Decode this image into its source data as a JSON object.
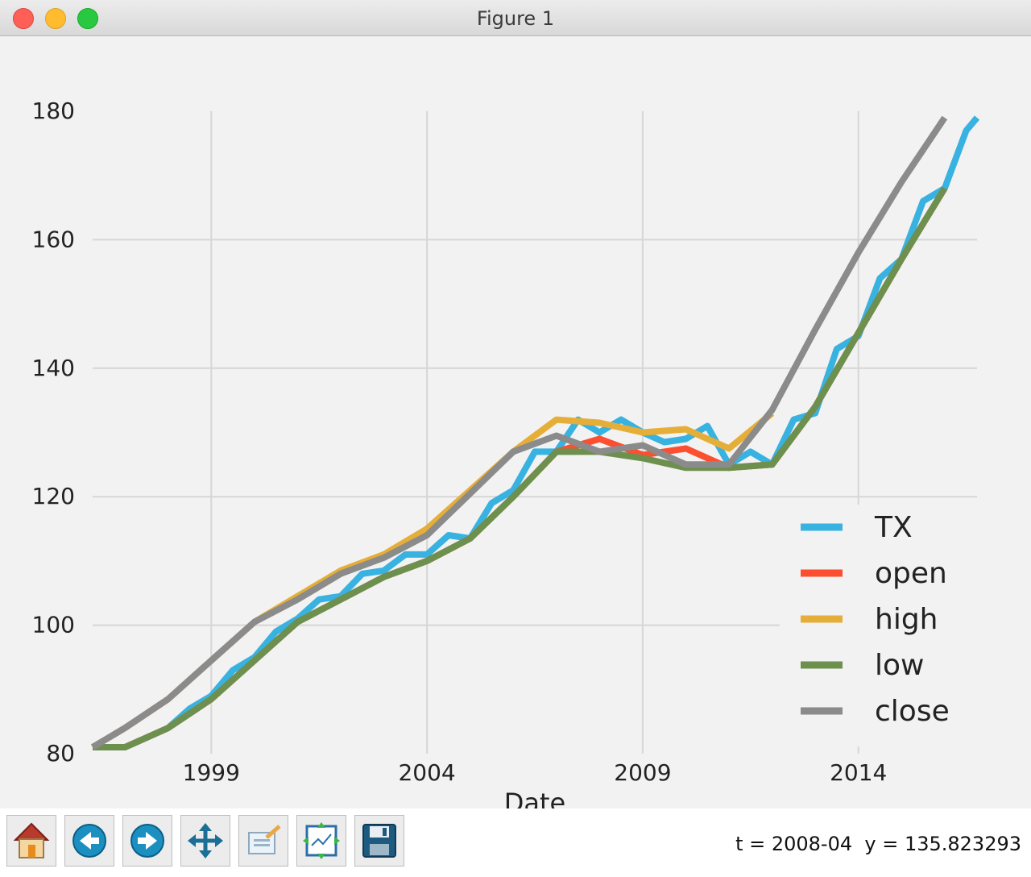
{
  "window": {
    "title": "Figure 1"
  },
  "toolbar": {
    "buttons": [
      {
        "name": "home-button",
        "icon": "home-icon"
      },
      {
        "name": "back-button",
        "icon": "back-arrow-icon"
      },
      {
        "name": "forward-button",
        "icon": "forward-arrow-icon"
      },
      {
        "name": "pan-button",
        "icon": "pan-move-icon"
      },
      {
        "name": "zoom-button",
        "icon": "zoom-rect-icon"
      },
      {
        "name": "subplots-button",
        "icon": "subplots-config-icon"
      },
      {
        "name": "save-button",
        "icon": "save-disk-icon"
      }
    ],
    "coords_text": "t = 2008-04  y = 135.823293"
  },
  "chart_data": {
    "type": "line",
    "title": "",
    "xlabel": "Date",
    "ylabel": "",
    "xlim": [
      1996.25,
      2016.75
    ],
    "ylim": [
      80,
      180
    ],
    "xticks": [
      1999,
      2004,
      2009,
      2014
    ],
    "xtick_labels": [
      "1999",
      "2004",
      "2009",
      "2014"
    ],
    "yticks": [
      80,
      100,
      120,
      140,
      160,
      180
    ],
    "ytick_labels": [
      "80",
      "100",
      "120",
      "140",
      "160",
      "180"
    ],
    "grid": true,
    "legend_position": "lower right",
    "series": [
      {
        "name": "TX",
        "color": "#38b2e0",
        "x": [
          1996.25,
          1997.0,
          1997.5,
          1998.0,
          1998.5,
          1999.0,
          1999.5,
          2000.0,
          2000.5,
          2001.0,
          2001.5,
          2002.0,
          2002.5,
          2003.0,
          2003.5,
          2004.0,
          2004.5,
          2005.0,
          2005.5,
          2006.0,
          2006.5,
          2007.0,
          2007.5,
          2008.0,
          2008.5,
          2009.0,
          2009.5,
          2010.0,
          2010.5,
          2011.0,
          2011.5,
          2012.0,
          2012.5,
          2013.0,
          2013.5,
          2014.0,
          2014.5,
          2015.0,
          2015.5,
          2016.0,
          2016.5,
          2016.75
        ],
        "y": [
          81,
          81,
          82.5,
          84,
          87,
          89,
          93,
          95,
          99,
          101,
          104,
          104.5,
          108,
          108.5,
          111,
          111,
          114,
          113.5,
          119,
          121,
          127,
          127,
          132,
          130,
          132,
          130,
          128.5,
          129,
          131,
          125,
          127,
          125,
          132,
          133,
          143,
          145,
          154,
          157,
          166,
          168,
          177,
          179
        ]
      },
      {
        "name": "open",
        "color": "#fc4f30",
        "x": [
          1996.25,
          1997.0,
          1998.0,
          1999.0,
          2000.0,
          2001.0,
          2002.0,
          2003.0,
          2004.0,
          2005.0,
          2006.0,
          2007.0,
          2008.0,
          2009.0,
          2010.0,
          2011.0,
          2012.0,
          2013.0,
          2014.0,
          2015.0,
          2016.0
        ],
        "y": [
          81,
          81,
          84,
          88.5,
          94.5,
          100.5,
          104,
          107.5,
          110,
          113.5,
          120,
          127,
          129,
          126.5,
          127.5,
          124.5,
          125,
          134,
          145.5,
          157,
          168
        ]
      },
      {
        "name": "high",
        "color": "#e5ae38",
        "x": [
          1996.25,
          1997.0,
          1998.0,
          1999.0,
          2000.0,
          2001.0,
          2002.0,
          2003.0,
          2004.0,
          2005.0,
          2006.0,
          2007.0,
          2008.0,
          2009.0,
          2010.0,
          2011.0,
          2012.0
        ],
        "y": [
          81,
          84,
          88.5,
          94.5,
          100.5,
          104.5,
          108.5,
          111,
          115,
          121,
          127,
          132,
          131.5,
          130,
          130.5,
          127.5,
          133
        ]
      },
      {
        "name": "low",
        "color": "#6d904f",
        "x": [
          1996.25,
          1997.0,
          1998.0,
          1999.0,
          2000.0,
          2001.0,
          2002.0,
          2003.0,
          2004.0,
          2005.0,
          2006.0,
          2007.0,
          2008.0,
          2009.0,
          2010.0,
          2011.0,
          2012.0,
          2013.0,
          2014.0,
          2015.0,
          2016.0
        ],
        "y": [
          81,
          81,
          84,
          88.5,
          94.5,
          100.5,
          104,
          107.5,
          110,
          113.5,
          120,
          127,
          127,
          126,
          124.5,
          124.5,
          125,
          134,
          145.5,
          157,
          168
        ]
      },
      {
        "name": "close",
        "color": "#8b8b8b",
        "x": [
          1996.25,
          1997.0,
          1998.0,
          1999.0,
          2000.0,
          2001.0,
          2002.0,
          2003.0,
          2004.0,
          2005.0,
          2006.0,
          2007.0,
          2008.0,
          2009.0,
          2010.0,
          2011.0,
          2012.0,
          2013.0,
          2014.0,
          2015.0,
          2016.0
        ],
        "y": [
          81,
          84,
          88.5,
          94.5,
          100.5,
          104,
          108,
          110.5,
          114,
          120.5,
          127,
          129.5,
          127,
          128,
          125,
          125,
          133.5,
          146,
          158,
          169,
          179
        ]
      }
    ]
  }
}
